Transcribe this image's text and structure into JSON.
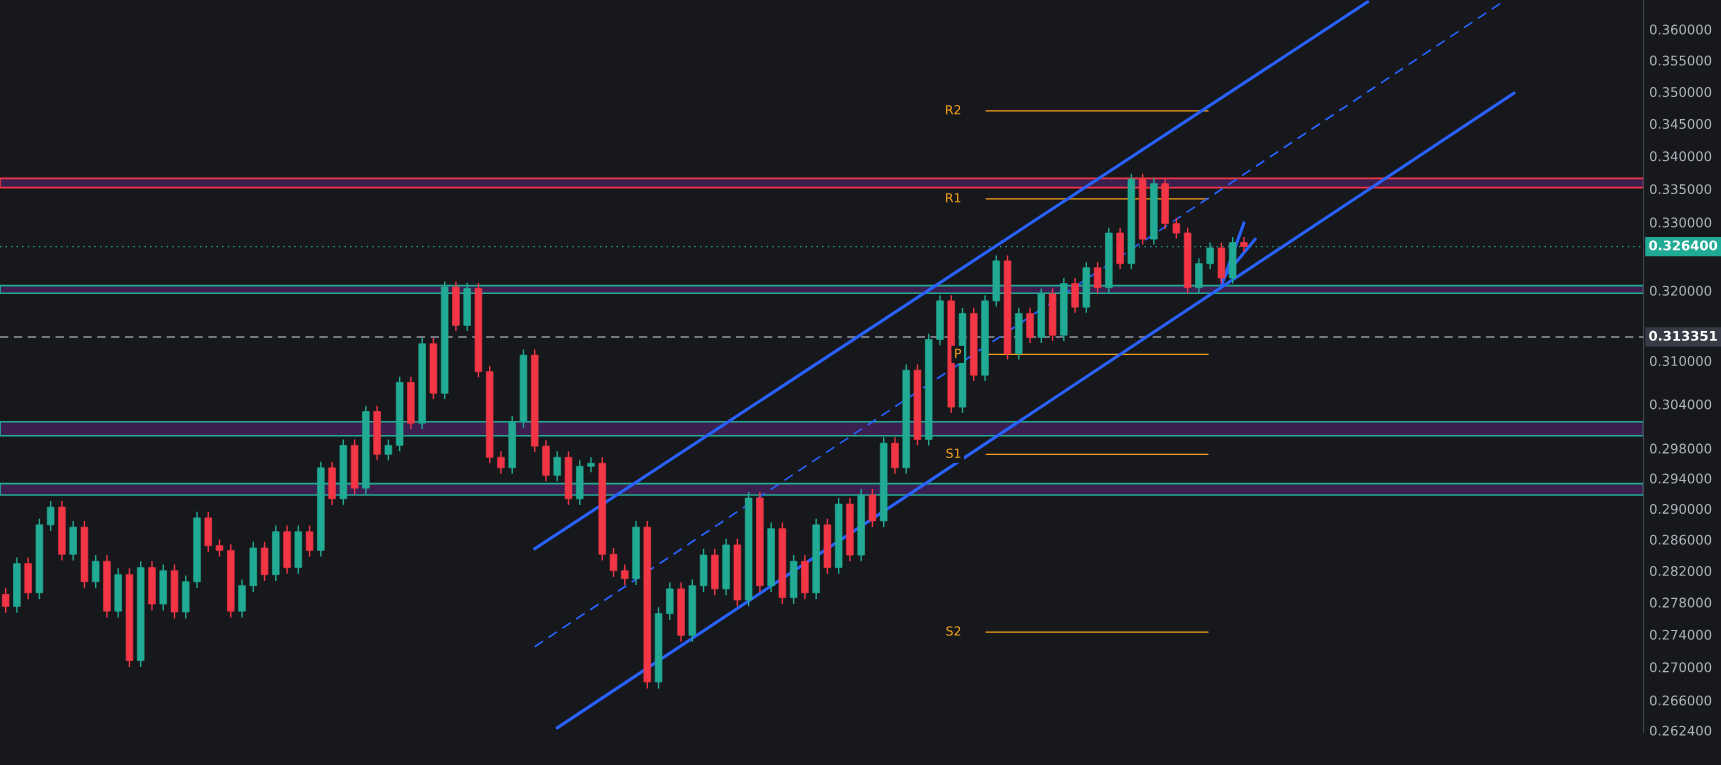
{
  "chart_data": {
    "type": "candlestick",
    "categories": [
      null,
      null,
      null,
      null,
      null,
      null,
      null,
      null,
      null,
      null,
      null,
      null,
      null,
      null,
      null,
      null,
      null,
      null,
      null,
      null,
      null,
      null,
      null,
      null,
      null,
      null,
      null,
      null,
      null,
      null,
      null,
      null,
      null,
      null,
      null,
      null,
      null,
      null,
      null,
      null,
      null,
      null,
      null,
      null,
      null,
      null,
      null,
      null,
      null,
      null,
      null,
      null,
      null,
      null,
      null,
      null,
      null,
      null,
      null,
      null,
      null,
      null,
      null,
      null,
      null,
      null,
      null,
      null,
      null,
      null,
      null,
      null,
      null,
      null,
      null,
      null,
      null,
      null,
      null,
      null,
      null,
      null,
      null,
      null,
      null,
      null,
      null,
      null,
      null,
      null,
      null,
      null,
      null,
      null,
      null,
      null,
      null,
      null,
      null,
      null,
      null,
      null,
      null,
      null,
      null,
      null,
      null,
      null,
      null,
      null,
      null,
      null,
      null,
      null,
      null,
      null,
      null,
      null,
      null,
      null,
      null,
      null,
      null,
      null,
      null,
      null,
      null,
      null,
      null,
      null,
      null,
      null,
      null,
      null,
      null,
      null,
      null,
      null,
      null,
      null,
      null,
      null,
      null,
      null,
      null,
      null
    ],
    "ohlc": [
      [
        0.279,
        0.2798,
        0.2767,
        0.2775
      ],
      [
        0.2775,
        0.2837,
        0.2767,
        0.2829
      ],
      [
        0.2829,
        0.2837,
        0.2784,
        0.2792
      ],
      [
        0.2792,
        0.2887,
        0.2784,
        0.2879
      ],
      [
        0.2879,
        0.291,
        0.2871,
        0.2902
      ],
      [
        0.2902,
        0.291,
        0.2833,
        0.2841
      ],
      [
        0.2841,
        0.2884,
        0.2833,
        0.2876
      ],
      [
        0.2876,
        0.2884,
        0.2798,
        0.2806
      ],
      [
        0.2806,
        0.284,
        0.2798,
        0.2832
      ],
      [
        0.2832,
        0.284,
        0.2761,
        0.2769
      ],
      [
        0.2769,
        0.2823,
        0.2761,
        0.2815
      ],
      [
        0.2815,
        0.2823,
        0.27,
        0.2708
      ],
      [
        0.2708,
        0.2832,
        0.27,
        0.2824
      ],
      [
        0.2824,
        0.2832,
        0.277,
        0.2778
      ],
      [
        0.2778,
        0.2828,
        0.277,
        0.282
      ],
      [
        0.282,
        0.2828,
        0.276,
        0.2768
      ],
      [
        0.2768,
        0.2814,
        0.276,
        0.2806
      ],
      [
        0.2806,
        0.2896,
        0.2798,
        0.2888
      ],
      [
        0.2888,
        0.2896,
        0.2844,
        0.2852
      ],
      [
        0.2852,
        0.286,
        0.2838,
        0.2846
      ],
      [
        0.2846,
        0.2854,
        0.2761,
        0.2769
      ],
      [
        0.2769,
        0.2809,
        0.2761,
        0.2801
      ],
      [
        0.2801,
        0.2857,
        0.2793,
        0.2849
      ],
      [
        0.2849,
        0.2857,
        0.2807,
        0.2815
      ],
      [
        0.2815,
        0.2878,
        0.2807,
        0.287
      ],
      [
        0.287,
        0.2878,
        0.2816,
        0.2824
      ],
      [
        0.2824,
        0.2878,
        0.2816,
        0.287
      ],
      [
        0.287,
        0.2878,
        0.2838,
        0.2846
      ],
      [
        0.2846,
        0.2962,
        0.2838,
        0.2954
      ],
      [
        0.2954,
        0.2962,
        0.2905,
        0.2913
      ],
      [
        0.2913,
        0.2992,
        0.2905,
        0.2984
      ],
      [
        0.2984,
        0.2992,
        0.2919,
        0.2927
      ],
      [
        0.2927,
        0.3038,
        0.2919,
        0.303
      ],
      [
        0.303,
        0.3038,
        0.2964,
        0.2972
      ],
      [
        0.2972,
        0.2992,
        0.2964,
        0.2984
      ],
      [
        0.2984,
        0.3078,
        0.2976,
        0.307
      ],
      [
        0.307,
        0.3078,
        0.3006,
        0.3014
      ],
      [
        0.3014,
        0.3132,
        0.3006,
        0.3124
      ],
      [
        0.3124,
        0.3132,
        0.3047,
        0.3055
      ],
      [
        0.3055,
        0.3213,
        0.3047,
        0.3205
      ],
      [
        0.3205,
        0.3213,
        0.3142,
        0.315
      ],
      [
        0.315,
        0.3211,
        0.3142,
        0.3203
      ],
      [
        0.3203,
        0.3211,
        0.3077,
        0.3085
      ],
      [
        0.3085,
        0.3093,
        0.296,
        0.2968
      ],
      [
        0.2968,
        0.2976,
        0.2946,
        0.2954
      ],
      [
        0.2954,
        0.3024,
        0.2946,
        0.3016
      ],
      [
        0.3016,
        0.3116,
        0.3008,
        0.3108
      ],
      [
        0.3108,
        0.3116,
        0.2975,
        0.2983
      ],
      [
        0.2983,
        0.2991,
        0.2936,
        0.2944
      ],
      [
        0.2944,
        0.2976,
        0.2936,
        0.2968
      ],
      [
        0.2968,
        0.2976,
        0.2905,
        0.2913
      ],
      [
        0.2913,
        0.2964,
        0.2905,
        0.2956
      ],
      [
        0.2956,
        0.2968,
        0.2948,
        0.296
      ],
      [
        0.296,
        0.2968,
        0.2833,
        0.2841
      ],
      [
        0.2841,
        0.2849,
        0.2812,
        0.282
      ],
      [
        0.282,
        0.2828,
        0.2802,
        0.281
      ],
      [
        0.281,
        0.2884,
        0.2802,
        0.2876
      ],
      [
        0.2876,
        0.2884,
        0.2674,
        0.2682
      ],
      [
        0.2682,
        0.2774,
        0.2674,
        0.2766
      ],
      [
        0.2766,
        0.2805,
        0.2758,
        0.2797
      ],
      [
        0.2797,
        0.2805,
        0.2731,
        0.2739
      ],
      [
        0.2739,
        0.2809,
        0.2731,
        0.2801
      ],
      [
        0.2801,
        0.2848,
        0.2793,
        0.284
      ],
      [
        0.284,
        0.2848,
        0.2789,
        0.2797
      ],
      [
        0.2797,
        0.2861,
        0.2789,
        0.2853
      ],
      [
        0.2853,
        0.2861,
        0.2775,
        0.2783
      ],
      [
        0.2783,
        0.2922,
        0.2775,
        0.2914
      ],
      [
        0.2914,
        0.2922,
        0.2793,
        0.2801
      ],
      [
        0.2801,
        0.2882,
        0.2793,
        0.2874
      ],
      [
        0.2874,
        0.2882,
        0.2778,
        0.2786
      ],
      [
        0.2786,
        0.284,
        0.2778,
        0.2832
      ],
      [
        0.2832,
        0.284,
        0.2784,
        0.2792
      ],
      [
        0.2792,
        0.2887,
        0.2784,
        0.2879
      ],
      [
        0.2879,
        0.2887,
        0.2816,
        0.2824
      ],
      [
        0.2824,
        0.2914,
        0.2816,
        0.2906
      ],
      [
        0.2906,
        0.2914,
        0.2832,
        0.284
      ],
      [
        0.284,
        0.2926,
        0.2832,
        0.2918
      ],
      [
        0.2918,
        0.2926,
        0.2876,
        0.2884
      ],
      [
        0.2884,
        0.2995,
        0.2876,
        0.2987
      ],
      [
        0.2987,
        0.2995,
        0.2946,
        0.2954
      ],
      [
        0.2954,
        0.3095,
        0.2946,
        0.3087
      ],
      [
        0.3087,
        0.3095,
        0.2984,
        0.2992
      ],
      [
        0.2992,
        0.3138,
        0.2984,
        0.313
      ],
      [
        0.313,
        0.3193,
        0.3122,
        0.3185
      ],
      [
        0.3185,
        0.3193,
        0.3028,
        0.3036
      ],
      [
        0.3036,
        0.3175,
        0.3028,
        0.3167
      ],
      [
        0.3167,
        0.3175,
        0.3072,
        0.308
      ],
      [
        0.308,
        0.3193,
        0.3072,
        0.3185
      ],
      [
        0.3185,
        0.3251,
        0.3177,
        0.3243
      ],
      [
        0.3243,
        0.3251,
        0.3102,
        0.311
      ],
      [
        0.311,
        0.3175,
        0.3102,
        0.3167
      ],
      [
        0.3167,
        0.3175,
        0.3125,
        0.3133
      ],
      [
        0.3133,
        0.3203,
        0.3125,
        0.3195
      ],
      [
        0.3195,
        0.3203,
        0.3128,
        0.3136
      ],
      [
        0.3136,
        0.3218,
        0.3128,
        0.321
      ],
      [
        0.321,
        0.3218,
        0.3168,
        0.3176
      ],
      [
        0.3176,
        0.3241,
        0.3168,
        0.3233
      ],
      [
        0.3233,
        0.3241,
        0.3196,
        0.3204
      ],
      [
        0.3204,
        0.3292,
        0.3196,
        0.3284
      ],
      [
        0.3284,
        0.3292,
        0.3231,
        0.3239
      ],
      [
        0.3239,
        0.3373,
        0.3231,
        0.3365
      ],
      [
        0.3365,
        0.3373,
        0.3267,
        0.3275
      ],
      [
        0.3275,
        0.3366,
        0.3267,
        0.3358
      ],
      [
        0.3358,
        0.3366,
        0.329,
        0.3298
      ],
      [
        0.3298,
        0.3306,
        0.3276,
        0.3284
      ],
      [
        0.3284,
        0.3292,
        0.3196,
        0.3204
      ],
      [
        0.3204,
        0.3247,
        0.3196,
        0.3239
      ],
      [
        0.3239,
        0.327,
        0.3231,
        0.3262
      ],
      [
        0.3262,
        0.327,
        0.321,
        0.3218
      ],
      [
        0.3218,
        0.3278,
        0.321,
        0.327
      ],
      [
        0.327,
        0.3278,
        0.3256,
        0.3264
      ],
      null,
      null,
      null,
      null,
      null,
      null,
      null,
      null,
      null,
      null,
      null,
      null,
      null,
      null,
      null,
      null,
      null,
      null,
      null,
      null,
      null,
      null,
      null,
      null,
      null,
      null,
      null,
      null,
      null,
      null,
      null,
      null,
      null,
      null,
      null
    ],
    "series": [
      {
        "type": "line",
        "values": [
          null,
          null,
          null,
          null,
          null,
          null,
          null,
          null,
          null,
          null,
          null,
          null,
          null,
          null,
          null,
          null,
          null,
          null,
          null,
          null,
          null,
          null,
          null,
          null,
          null,
          null,
          null,
          null,
          null,
          null,
          null,
          null,
          null,
          null,
          null,
          null,
          null,
          null,
          null,
          null,
          null,
          null,
          null,
          null,
          null,
          null,
          null,
          0.2848,
          null,
          null,
          null,
          null,
          null,
          null,
          null,
          null,
          null,
          null,
          null,
          null,
          null,
          null,
          null,
          null,
          null,
          null,
          null,
          null,
          null,
          null,
          null,
          null,
          null,
          null,
          null,
          null,
          null,
          null,
          null,
          null,
          null,
          null,
          null,
          null,
          null,
          null,
          null,
          null,
          null,
          null,
          null,
          null,
          null,
          null,
          null,
          null,
          null,
          null,
          null,
          null,
          null,
          null,
          null,
          null,
          null,
          null,
          null,
          null,
          null,
          null,
          null,
          null,
          null,
          null,
          null,
          null,
          null,
          null,
          null,
          null,
          null,
          0.3645,
          null,
          null,
          null,
          null,
          null,
          null,
          null,
          null,
          null,
          null,
          null,
          null,
          null,
          null,
          null,
          null,
          null,
          null,
          null,
          null,
          null,
          null,
          null,
          null
        ],
        "color": "#2962ff",
        "line_style": "solid"
      },
      {
        "type": "line",
        "values": [
          null,
          null,
          null,
          null,
          null,
          null,
          null,
          null,
          null,
          null,
          null,
          null,
          null,
          null,
          null,
          null,
          null,
          null,
          null,
          null,
          null,
          null,
          null,
          null,
          null,
          null,
          null,
          null,
          null,
          null,
          null,
          null,
          null,
          null,
          null,
          null,
          null,
          null,
          null,
          null,
          null,
          null,
          null,
          null,
          null,
          null,
          null,
          0.2725,
          null,
          null,
          null,
          null,
          null,
          null,
          null,
          null,
          null,
          null,
          null,
          null,
          null,
          null,
          null,
          null,
          null,
          null,
          null,
          null,
          null,
          null,
          null,
          null,
          null,
          null,
          null,
          null,
          null,
          null,
          null,
          null,
          null,
          null,
          null,
          null,
          null,
          null,
          null,
          null,
          null,
          null,
          null,
          null,
          null,
          null,
          null,
          null,
          null,
          null,
          null,
          null,
          null,
          null,
          null,
          null,
          null,
          null,
          null,
          null,
          null,
          null,
          null,
          null,
          null,
          null,
          null,
          null,
          null,
          null,
          null,
          null,
          null,
          null,
          null,
          null,
          null,
          null,
          null,
          null,
          null,
          null,
          null,
          null,
          null,
          0.3645,
          null,
          null,
          null,
          null,
          null,
          null,
          null,
          null,
          null,
          null,
          null,
          null
        ],
        "color": "#2962ff",
        "line_style": "dashed"
      },
      {
        "type": "line",
        "values": [
          null,
          null,
          null,
          null,
          null,
          null,
          null,
          null,
          null,
          null,
          null,
          null,
          null,
          null,
          null,
          null,
          null,
          null,
          null,
          null,
          null,
          null,
          null,
          null,
          null,
          null,
          null,
          null,
          null,
          null,
          null,
          null,
          null,
          null,
          null,
          null,
          null,
          null,
          null,
          null,
          null,
          null,
          null,
          null,
          null,
          null,
          null,
          null,
          null,
          0.2627,
          null,
          null,
          null,
          null,
          null,
          null,
          null,
          null,
          null,
          null,
          null,
          null,
          null,
          null,
          null,
          null,
          null,
          null,
          null,
          null,
          null,
          null,
          null,
          null,
          null,
          null,
          null,
          null,
          null,
          null,
          null,
          null,
          null,
          null,
          null,
          null,
          null,
          null,
          null,
          null,
          null,
          null,
          null,
          null,
          null,
          null,
          null,
          null,
          null,
          null,
          null,
          null,
          null,
          null,
          null,
          null,
          null,
          null,
          null,
          null,
          null,
          null,
          null,
          null,
          null,
          null,
          null,
          null,
          null,
          null,
          null,
          null,
          null,
          null,
          null,
          null,
          null,
          null,
          null,
          null,
          null,
          null,
          null,
          null,
          0.3498,
          null,
          null,
          null,
          null,
          null,
          null,
          null,
          null,
          null,
          null,
          null
        ],
        "color": "#2962ff",
        "line_style": "solid"
      },
      {
        "type": "line",
        "values": [
          null,
          null,
          null,
          null,
          null,
          null,
          null,
          null,
          null,
          null,
          null,
          null,
          null,
          null,
          null,
          null,
          null,
          null,
          null,
          null,
          null,
          null,
          null,
          null,
          null,
          null,
          null,
          null,
          null,
          null,
          null,
          null,
          null,
          null,
          null,
          null,
          null,
          null,
          null,
          null,
          null,
          null,
          null,
          null,
          null,
          null,
          null,
          null,
          null,
          null,
          null,
          null,
          null,
          null,
          null,
          null,
          null,
          null,
          null,
          null,
          null,
          null,
          null,
          null,
          null,
          null,
          null,
          null,
          null,
          null,
          null,
          null,
          null,
          null,
          null,
          null,
          null,
          null,
          null,
          null,
          null,
          null,
          null,
          null,
          null,
          null,
          null,
          null,
          null,
          null,
          null,
          null,
          null,
          null,
          null,
          null,
          null,
          null,
          null,
          null,
          null,
          null,
          null,
          null,
          null,
          null,
          null,
          null,
          0.3207,
          null,
          0.3299,
          null,
          null,
          null,
          null,
          null,
          null,
          null,
          null,
          null,
          null,
          null,
          null,
          null,
          null,
          null,
          null,
          null,
          null,
          null,
          null,
          null,
          null,
          null,
          null,
          null,
          null,
          null,
          null,
          null,
          null,
          null,
          null,
          null,
          null,
          null
        ],
        "color": "#2962ff",
        "line_style": "solid"
      },
      {
        "type": "line",
        "values": [
          null,
          null,
          null,
          null,
          null,
          null,
          null,
          null,
          null,
          null,
          null,
          null,
          null,
          null,
          null,
          null,
          null,
          null,
          null,
          null,
          null,
          null,
          null,
          null,
          null,
          null,
          null,
          null,
          null,
          null,
          null,
          null,
          null,
          null,
          null,
          null,
          null,
          null,
          null,
          null,
          null,
          null,
          null,
          null,
          null,
          null,
          null,
          null,
          null,
          null,
          null,
          null,
          null,
          null,
          null,
          null,
          null,
          null,
          null,
          null,
          null,
          null,
          null,
          null,
          null,
          null,
          null,
          null,
          null,
          null,
          null,
          null,
          null,
          null,
          null,
          null,
          null,
          null,
          null,
          null,
          null,
          null,
          null,
          null,
          null,
          null,
          null,
          null,
          null,
          null,
          null,
          null,
          null,
          null,
          null,
          null,
          null,
          null,
          null,
          null,
          null,
          null,
          null,
          null,
          null,
          null,
          null,
          null,
          0.3215,
          null,
          null,
          0.3275,
          null,
          null,
          null,
          null,
          null,
          null,
          null,
          null,
          null,
          null,
          null,
          null,
          null,
          null,
          null,
          null,
          null,
          null,
          null,
          null,
          null,
          null,
          null,
          null,
          null,
          null,
          null,
          null,
          null,
          null,
          null,
          null,
          null,
          null
        ],
        "color": "#2962ff",
        "line_style": "solid"
      }
    ],
    "bands": [
      {
        "axis": "y",
        "from": 0.3352,
        "to": 0.3366,
        "color": "#f23645"
      },
      {
        "axis": "y",
        "from": 0.3196,
        "to": 0.3207,
        "color": "#22ab94"
      },
      {
        "axis": "y",
        "from": 0.2997,
        "to": 0.3016,
        "color": "#22ab94"
      },
      {
        "axis": "y",
        "from": 0.2918,
        "to": 0.2933,
        "color": "#22ab94"
      }
    ],
    "ref_lines": [
      {
        "axis": "y",
        "value": 0.3264,
        "label": "0.326400",
        "color": "#22ab94",
        "line_style": "dotted"
      },
      {
        "axis": "y",
        "value": 0.313351,
        "label": "0.313351",
        "color": "#9598a1",
        "line_style": "dashed"
      },
      {
        "axis": "y",
        "value": 0.347,
        "label": "R2",
        "color": "#f7a21b",
        "line_style": "solid"
      },
      {
        "axis": "y",
        "value": 0.3335,
        "label": "R1",
        "color": "#f7a21b",
        "line_style": "solid"
      },
      {
        "axis": "y",
        "value": 0.3109,
        "label": "P",
        "color": "#f7a21b",
        "line_style": "solid"
      },
      {
        "axis": "y",
        "value": 0.2972,
        "label": "S1",
        "color": "#f7a21b",
        "line_style": "solid"
      },
      {
        "axis": "y",
        "value": 0.2743,
        "label": "S2",
        "color": "#f7a21b",
        "line_style": "solid"
      }
    ],
    "log": "y",
    "ylim": [
      0.2622,
      0.3648
    ],
    "yticks": [
      {
        "value": 0.36,
        "label": "0.360000"
      },
      {
        "value": 0.355,
        "label": "0.355000"
      },
      {
        "value": 0.35,
        "label": "0.350000"
      },
      {
        "value": 0.345,
        "label": "0.345000"
      },
      {
        "value": 0.34,
        "label": "0.340000"
      },
      {
        "value": 0.335,
        "label": "0.335000"
      },
      {
        "value": 0.33,
        "label": "0.330000"
      },
      {
        "value": 0.32,
        "label": "0.320000"
      },
      {
        "value": 0.31,
        "label": "0.310000"
      },
      {
        "value": 0.304,
        "label": "0.304000"
      },
      {
        "value": 0.298,
        "label": "0.298000"
      },
      {
        "value": 0.294,
        "label": "0.294000"
      },
      {
        "value": 0.29,
        "label": "0.290000"
      },
      {
        "value": 0.286,
        "label": "0.286000"
      },
      {
        "value": 0.282,
        "label": "0.282000"
      },
      {
        "value": 0.278,
        "label": "0.278000"
      },
      {
        "value": 0.274,
        "label": "0.274000"
      },
      {
        "value": 0.27,
        "label": "0.270000"
      },
      {
        "value": 0.266,
        "label": "0.266000"
      },
      {
        "value": 0.2624,
        "label": "0.262400"
      }
    ],
    "tick_labels": "y",
    "grid": false,
    "legend": false
  }
}
